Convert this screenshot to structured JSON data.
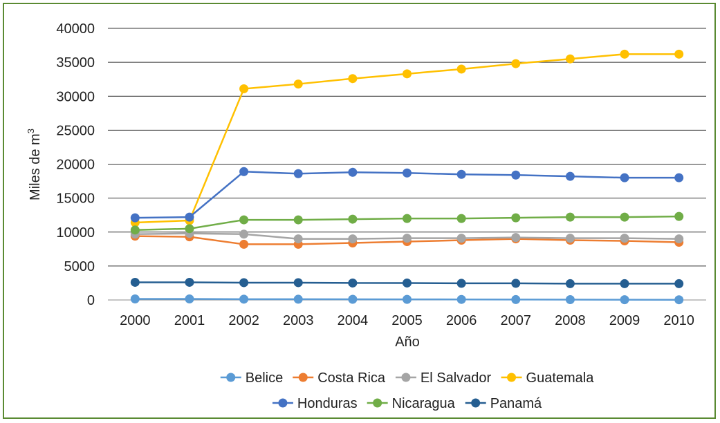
{
  "chart_data": {
    "type": "line",
    "x": [
      "2000",
      "2001",
      "2002",
      "2003",
      "2004",
      "2005",
      "2006",
      "2007",
      "2008",
      "2009",
      "2010"
    ],
    "xlabel": "Año",
    "ylabel_main": "Miles de m",
    "ylabel_sup": "3",
    "ylim": [
      0,
      40000
    ],
    "yticks": [
      0,
      5000,
      10000,
      15000,
      20000,
      25000,
      30000,
      35000,
      40000
    ],
    "grid": true,
    "legend_position": "bottom",
    "series": [
      {
        "name": "Belice",
        "color": "#5b9bd5",
        "values": [
          150,
          150,
          120,
          110,
          100,
          90,
          80,
          60,
          50,
          40,
          30
        ]
      },
      {
        "name": "Costa Rica",
        "color": "#ed7d31",
        "values": [
          9400,
          9300,
          8200,
          8200,
          8400,
          8600,
          8800,
          9000,
          8800,
          8700,
          8500
        ]
      },
      {
        "name": "El Salvador",
        "color": "#a5a5a5",
        "values": [
          9700,
          9800,
          9700,
          9000,
          9000,
          9100,
          9100,
          9200,
          9100,
          9100,
          9000
        ]
      },
      {
        "name": "Guatemala",
        "color": "#ffc000",
        "values": [
          11400,
          11700,
          31100,
          31800,
          32600,
          33300,
          34000,
          34800,
          35500,
          36200,
          36200
        ]
      },
      {
        "name": "Honduras",
        "color": "#4472c4",
        "values": [
          12100,
          12200,
          18900,
          18600,
          18800,
          18700,
          18500,
          18400,
          18200,
          18000,
          18000
        ]
      },
      {
        "name": "Nicaragua",
        "color": "#70ad47",
        "values": [
          10300,
          10500,
          11800,
          11800,
          11900,
          12000,
          12000,
          12100,
          12200,
          12200,
          12300
        ]
      },
      {
        "name": "Panamá",
        "color": "#255e91",
        "values": [
          2600,
          2600,
          2550,
          2550,
          2500,
          2500,
          2450,
          2450,
          2400,
          2400,
          2400
        ]
      }
    ]
  }
}
